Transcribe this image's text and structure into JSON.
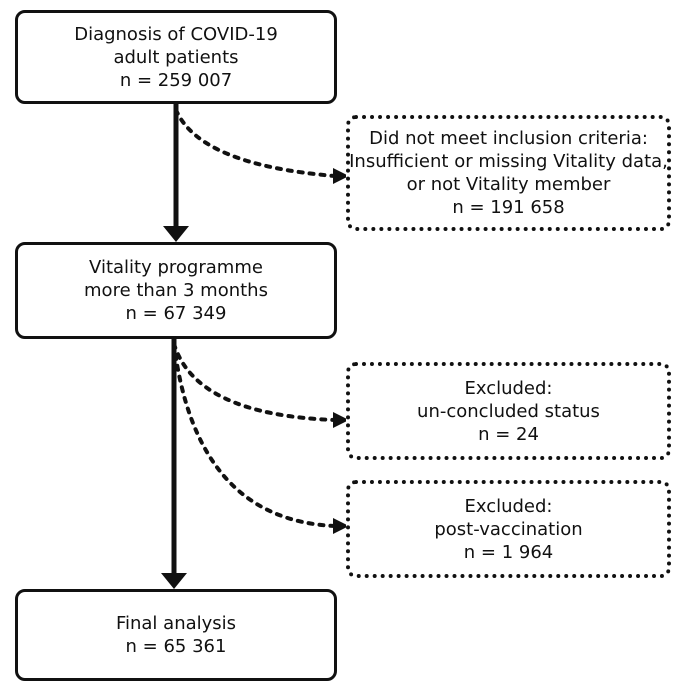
{
  "boxes": {
    "diagnosis": {
      "lines": [
        "Diagnosis of COVID-19",
        "adult patients",
        "n = 259 007"
      ]
    },
    "exclusion_inclusion": {
      "lines": [
        "Did not meet inclusion criteria:",
        "Insufficient or missing Vitality data,",
        "or not Vitality member",
        "n = 191 658"
      ]
    },
    "vitality": {
      "lines": [
        "Vitality programme",
        "more than 3 months",
        "n = 67 349"
      ]
    },
    "excluded_status": {
      "lines": [
        "Excluded:",
        "un-concluded status",
        "n = 24"
      ]
    },
    "excluded_vaccination": {
      "lines": [
        "Excluded:",
        "post-vaccination",
        "n = 1 964"
      ]
    },
    "final": {
      "lines": [
        "Final analysis",
        "n = 65 361"
      ]
    }
  }
}
